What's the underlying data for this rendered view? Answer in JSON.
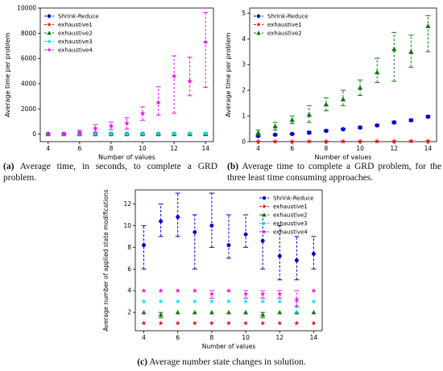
{
  "colors": {
    "Shrink-Reduce": "#0000cc",
    "exhaustive1": "#ee1111",
    "exhaustive2": "#117711",
    "exhaustive3": "#00e8e8",
    "exhaustive4": "#ee11ee"
  },
  "captions": {
    "a": {
      "tag": "(a)",
      "text": "Average time, in seconds, to complete a GRD problem."
    },
    "b": {
      "tag": "(b)",
      "text": "Average time to complete a GRD problem, for the three least time consuming approaches."
    },
    "c": {
      "tag": "(c)",
      "text": "Average number state changes in solution."
    }
  },
  "chart_data": [
    {
      "id": "a",
      "type": "scatter",
      "error_bars": true,
      "xlabel": "Number of values",
      "ylabel": "Average time per problem",
      "xlim": [
        3.5,
        14.5
      ],
      "ylim": [
        -600,
        10000
      ],
      "xticks": [
        4,
        6,
        8,
        10,
        12,
        14
      ],
      "yticks": [
        0,
        2000,
        4000,
        6000,
        8000,
        10000
      ],
      "legend_position": "top-left",
      "x": [
        4,
        5,
        6,
        7,
        8,
        9,
        10,
        11,
        12,
        13,
        14
      ],
      "series": [
        {
          "name": "Shrink-Reduce",
          "marker": "circle",
          "values": [
            1,
            1,
            1,
            1,
            2,
            2,
            3,
            3,
            4,
            5,
            6
          ],
          "err_low": [
            0,
            0,
            0,
            0,
            0,
            0,
            0,
            0,
            0,
            0,
            0
          ],
          "err_high": [
            1,
            1,
            1,
            1,
            2,
            2,
            3,
            3,
            4,
            5,
            6
          ]
        },
        {
          "name": "exhaustive1",
          "marker": "star",
          "values": [
            2,
            3,
            4,
            5,
            6,
            8,
            10,
            12,
            15,
            18,
            22
          ],
          "err_low": [
            0,
            0,
            0,
            0,
            0,
            0,
            0,
            0,
            0,
            0,
            0
          ],
          "err_high": [
            2,
            3,
            4,
            5,
            6,
            8,
            10,
            12,
            15,
            18,
            22
          ]
        },
        {
          "name": "exhaustive2",
          "marker": "triangle",
          "values": [
            0.35,
            0.6,
            0.85,
            1.05,
            1.45,
            1.65,
            2.1,
            2.7,
            3.6,
            3.5,
            4.5
          ],
          "err_low": [
            0.25,
            0.45,
            0.7,
            0.75,
            1.2,
            1.4,
            1.8,
            2.3,
            2.35,
            2.9,
            3.5
          ],
          "err_high": [
            0.45,
            0.75,
            1.0,
            1.4,
            1.7,
            2.0,
            2.4,
            3.25,
            4.25,
            4.15,
            4.9
          ]
        },
        {
          "name": "exhaustive3",
          "marker": "star",
          "values": [
            2,
            4,
            6,
            10,
            14,
            20,
            25,
            30,
            40,
            50,
            60
          ],
          "err_low": [
            0,
            0,
            0,
            0,
            0,
            0,
            0,
            0,
            0,
            0,
            0
          ],
          "err_high": [
            5,
            8,
            12,
            20,
            30,
            40,
            50,
            60,
            80,
            100,
            120
          ]
        },
        {
          "name": "exhaustive4",
          "marker": "star",
          "values": [
            20,
            50,
            150,
            450,
            650,
            850,
            1650,
            2500,
            4600,
            4200,
            7300
          ],
          "err_low": [
            0,
            0,
            0,
            150,
            350,
            400,
            1100,
            1500,
            1650,
            3050,
            3700
          ],
          "err_high": [
            50,
            100,
            300,
            750,
            950,
            1300,
            2150,
            3750,
            6200,
            6100,
            9650
          ]
        }
      ]
    },
    {
      "id": "b",
      "type": "scatter",
      "error_bars": true,
      "xlabel": "Number of values",
      "ylabel": "Average time per problem",
      "xlim": [
        3.5,
        14.5
      ],
      "ylim": [
        0,
        5.2
      ],
      "xticks": [
        4,
        6,
        8,
        10,
        12,
        14
      ],
      "yticks": [
        0,
        1,
        2,
        3,
        4,
        5
      ],
      "legend_position": "top-left",
      "x": [
        4,
        5,
        6,
        7,
        8,
        9,
        10,
        11,
        12,
        13,
        14
      ],
      "series": [
        {
          "name": "Shrink-Reduce",
          "marker": "circle",
          "values": [
            0.22,
            0.27,
            0.3,
            0.35,
            0.42,
            0.48,
            0.55,
            0.63,
            0.75,
            0.83,
            0.97
          ],
          "err_low": [
            0.2,
            0.24,
            0.27,
            0.31,
            0.39,
            0.45,
            0.52,
            0.6,
            0.7,
            0.79,
            0.93
          ],
          "err_high": [
            0.25,
            0.3,
            0.33,
            0.4,
            0.46,
            0.52,
            0.59,
            0.67,
            0.8,
            0.88,
            1.02
          ]
        },
        {
          "name": "exhaustive1",
          "marker": "star",
          "values": [
            0.002,
            0.003,
            0.004,
            0.005,
            0.006,
            0.008,
            0.01,
            0.012,
            0.015,
            0.018,
            0.022
          ],
          "err_low": [
            0,
            0,
            0,
            0,
            0,
            0,
            0,
            0,
            0,
            0,
            0
          ],
          "err_high": [
            0.004,
            0.005,
            0.006,
            0.008,
            0.01,
            0.012,
            0.015,
            0.018,
            0.02,
            0.025,
            0.03
          ]
        },
        {
          "name": "exhaustive2",
          "marker": "triangle",
          "values": [
            0.35,
            0.6,
            0.85,
            1.05,
            1.45,
            1.65,
            2.1,
            2.7,
            3.6,
            3.5,
            4.5
          ],
          "err_low": [
            0.25,
            0.45,
            0.7,
            0.75,
            1.2,
            1.4,
            1.8,
            2.3,
            2.35,
            2.9,
            3.5
          ],
          "err_high": [
            0.45,
            0.75,
            1.0,
            1.4,
            1.7,
            2.0,
            2.4,
            3.25,
            4.25,
            4.15,
            4.9
          ]
        }
      ]
    },
    {
      "id": "c",
      "type": "scatter",
      "error_bars": true,
      "xlabel": "Number of values",
      "ylabel": "Average number of applied state modifications",
      "xlim": [
        3.5,
        14.5
      ],
      "ylim": [
        0.3,
        13.3
      ],
      "xticks": [
        4,
        6,
        8,
        10,
        12,
        14
      ],
      "yticks": [
        2,
        4,
        6,
        8,
        10,
        12
      ],
      "legend_position": "top-right",
      "x": [
        4,
        5,
        6,
        7,
        8,
        9,
        10,
        11,
        12,
        13,
        14
      ],
      "series": [
        {
          "name": "Shrink-Reduce",
          "marker": "circle",
          "values": [
            8.2,
            10.4,
            10.8,
            9.4,
            10.0,
            8.2,
            9.2,
            8.6,
            7.2,
            6.8,
            7.4
          ],
          "err_low": [
            6,
            9,
            9,
            6,
            8,
            7,
            8,
            6,
            5,
            5,
            6
          ],
          "err_high": [
            10,
            12,
            13,
            11,
            13,
            11,
            11,
            11,
            10,
            9,
            9
          ]
        },
        {
          "name": "exhaustive1",
          "marker": "star",
          "values": [
            1,
            1,
            1,
            1,
            1,
            1,
            1,
            1,
            1,
            1,
            1
          ],
          "err_low": [
            1,
            1,
            1,
            1,
            1,
            1,
            1,
            1,
            1,
            1,
            1
          ],
          "err_high": [
            1,
            1,
            1,
            1,
            1,
            1,
            1,
            1,
            1,
            1,
            1
          ]
        },
        {
          "name": "exhaustive2",
          "marker": "triangle",
          "values": [
            2,
            1.8,
            2,
            2,
            2,
            2,
            2,
            1.8,
            2,
            2,
            2
          ],
          "err_low": [
            2,
            1.5,
            2,
            2,
            2,
            2,
            2,
            1.5,
            2,
            2,
            2
          ],
          "err_high": [
            2,
            2,
            2,
            2,
            2,
            2,
            2,
            2,
            2,
            2,
            2
          ]
        },
        {
          "name": "exhaustive3",
          "marker": "star",
          "values": [
            3,
            3,
            3,
            3,
            3,
            3,
            3,
            3,
            3,
            2.6,
            3
          ],
          "err_low": [
            3,
            3,
            3,
            3,
            3,
            3,
            3,
            3,
            3,
            2,
            3
          ],
          "err_high": [
            3,
            3,
            3,
            3,
            3,
            3,
            3,
            3,
            3,
            3,
            3
          ]
        },
        {
          "name": "exhaustive4",
          "marker": "star",
          "values": [
            4,
            4,
            4,
            4,
            3.7,
            4,
            3.7,
            3.7,
            3.7,
            3.2,
            4
          ],
          "err_low": [
            4,
            4,
            4,
            4,
            3.3,
            4,
            3.3,
            3.3,
            3.3,
            2.5,
            4
          ],
          "err_high": [
            4,
            4,
            4,
            4,
            4,
            4,
            4,
            4,
            4,
            4,
            4
          ]
        }
      ]
    }
  ]
}
